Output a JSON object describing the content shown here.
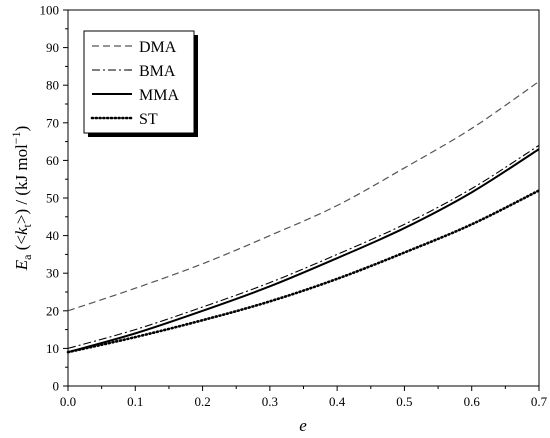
{
  "chart_data": {
    "type": "line",
    "xlabel": "e",
    "ylabel": {
      "symbol": "E",
      "symbol_sub": "a",
      "open": " (<",
      "k": "k",
      "k_sub": "t",
      "close": ">) / (kJ mol",
      "exp": "−1",
      "end": ")"
    },
    "xlim": [
      0.0,
      0.7
    ],
    "ylim": [
      0,
      100
    ],
    "xticks": [
      "0.0",
      "0.1",
      "0.2",
      "0.3",
      "0.4",
      "0.5",
      "0.6",
      "0.7"
    ],
    "yticks": [
      "0",
      "10",
      "20",
      "30",
      "40",
      "50",
      "60",
      "70",
      "80",
      "90",
      "100"
    ],
    "grid": false,
    "legend_position": "top-left",
    "series": [
      {
        "name": "DMA",
        "style": "dashed",
        "x": [
          0.0,
          0.1,
          0.2,
          0.3,
          0.4,
          0.5,
          0.6,
          0.7
        ],
        "y": [
          20.0,
          26.0,
          32.5,
          40.0,
          48.0,
          58.0,
          68.5,
          81.0
        ]
      },
      {
        "name": "BMA",
        "style": "dash-dot",
        "x": [
          0.0,
          0.1,
          0.2,
          0.3,
          0.4,
          0.5,
          0.6,
          0.7
        ],
        "y": [
          10.0,
          15.0,
          21.0,
          27.5,
          35.0,
          43.0,
          52.5,
          64.0
        ]
      },
      {
        "name": "MMA",
        "style": "solid",
        "x": [
          0.0,
          0.1,
          0.2,
          0.3,
          0.4,
          0.5,
          0.6,
          0.7
        ],
        "y": [
          9.0,
          14.0,
          20.0,
          26.5,
          34.0,
          42.0,
          51.5,
          63.0
        ]
      },
      {
        "name": "ST",
        "style": "dotted",
        "x": [
          0.0,
          0.1,
          0.2,
          0.3,
          0.4,
          0.5,
          0.6,
          0.7
        ],
        "y": [
          9.0,
          13.0,
          17.5,
          22.5,
          28.5,
          35.5,
          43.0,
          52.0
        ]
      }
    ]
  }
}
